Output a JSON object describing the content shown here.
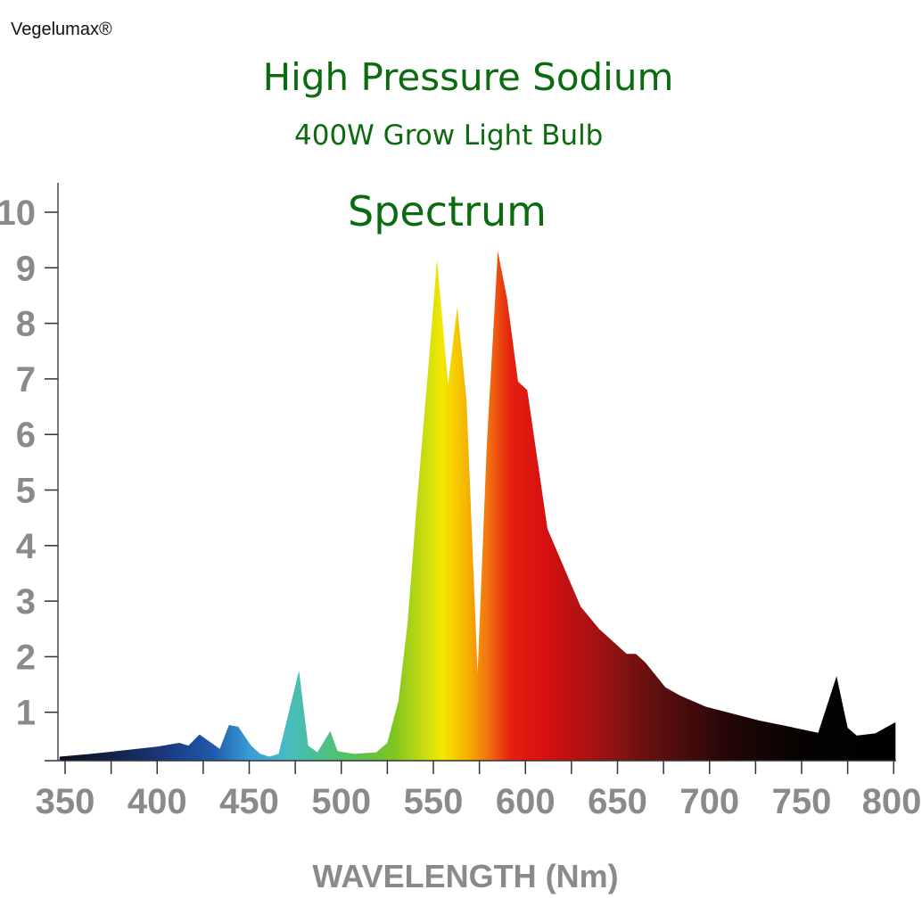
{
  "brand": "Vegelumax®",
  "chart_data": {
    "type": "area",
    "title": "High Pressure Sodium",
    "subtitle": "400W Grow Light Bulb",
    "annotation": "Spectrum",
    "xlabel": "WAVELENGTH (Nm)",
    "ylabel": "",
    "xlim": [
      345,
      802
    ],
    "ylim": [
      0,
      10.5
    ],
    "xticks": [
      350,
      400,
      450,
      500,
      550,
      600,
      650,
      700,
      750,
      800
    ],
    "yticks": [
      1,
      2,
      3,
      4,
      5,
      6,
      7,
      8,
      9,
      10
    ],
    "grid": false,
    "fill": "visible-spectrum gradient by wavelength",
    "x": [
      347,
      364,
      378,
      400,
      412,
      417,
      423,
      434,
      439,
      444,
      451,
      456,
      461,
      466,
      477,
      482,
      487,
      494,
      498,
      507,
      519,
      525,
      531,
      536,
      541,
      547,
      552,
      558,
      563,
      568,
      574,
      579,
      585,
      590,
      596,
      601,
      612,
      621,
      630,
      640,
      655,
      660,
      665,
      676,
      684,
      698,
      727,
      742,
      759,
      769,
      775,
      780,
      790,
      801
    ],
    "y": [
      0.2,
      0.25,
      0.3,
      0.38,
      0.45,
      0.4,
      0.6,
      0.34,
      0.77,
      0.74,
      0.4,
      0.25,
      0.2,
      0.25,
      1.75,
      0.4,
      0.28,
      0.66,
      0.3,
      0.25,
      0.28,
      0.45,
      1.2,
      2.6,
      4.75,
      7.1,
      9.15,
      6.9,
      8.3,
      6.6,
      1.7,
      5.8,
      9.3,
      8.45,
      6.95,
      6.8,
      4.3,
      3.6,
      2.9,
      2.5,
      2.05,
      2.05,
      1.9,
      1.45,
      1.3,
      1.1,
      0.85,
      0.75,
      0.63,
      1.65,
      0.72,
      0.58,
      0.62,
      0.82
    ]
  },
  "colors": {
    "title": "#0b6b10",
    "ticks": "#8a8a8a",
    "axis": "#555555"
  }
}
